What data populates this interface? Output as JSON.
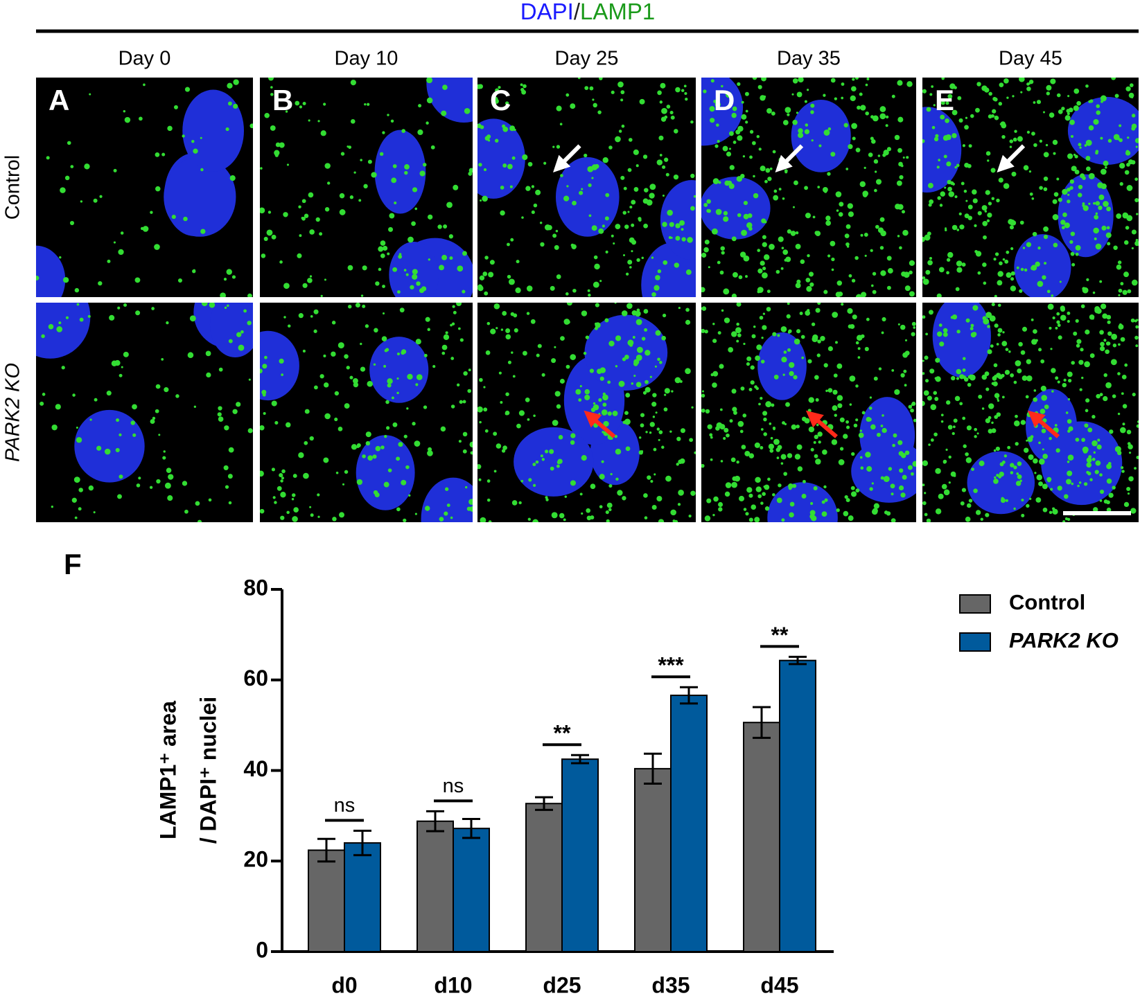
{
  "figure": {
    "title_parts": [
      "DAPI",
      "/",
      "LAMP1"
    ],
    "columns": [
      "Day 0",
      "Day 10",
      "Day 25",
      "Day 35",
      "Day 45"
    ],
    "rows": [
      "Control",
      "PARK2 KO"
    ],
    "panels": [
      "A",
      "B",
      "C",
      "D",
      "E"
    ],
    "chart_label": "F"
  },
  "chart_data": {
    "type": "bar",
    "y_label": [
      "LAMP1⁺ area",
      "/ DAPI⁺ nuclei"
    ],
    "categories": [
      "d0",
      "d10",
      "d25",
      "d35",
      "d45"
    ],
    "series": [
      {
        "name": "Control",
        "color": "#666666",
        "values": [
          22.4,
          28.8,
          32.7,
          40.4,
          50.6
        ],
        "errors": [
          2.5,
          2.2,
          1.4,
          3.3,
          3.4
        ]
      },
      {
        "name": "PARK2 KO",
        "color": "#005a9c",
        "values": [
          24.0,
          27.2,
          42.5,
          56.6,
          64.3
        ],
        "errors": [
          2.7,
          2.1,
          0.9,
          1.8,
          0.8
        ]
      }
    ],
    "significance": [
      "ns",
      "ns",
      "**",
      "***",
      "**"
    ],
    "ylim": [
      0,
      80
    ],
    "yticks": [
      0,
      20,
      40,
      60,
      80
    ]
  }
}
